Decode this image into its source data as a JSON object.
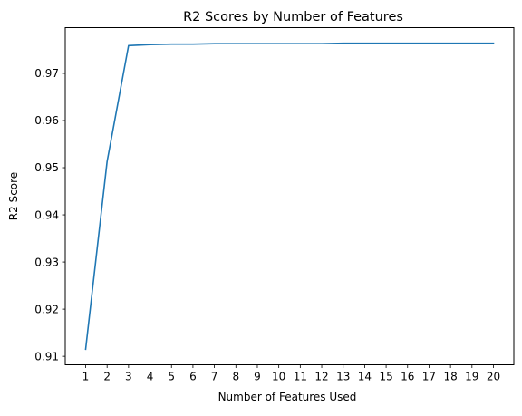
{
  "chart_data": {
    "type": "line",
    "title": "R2 Scores by Number of Features",
    "xlabel": "Number of Features Used",
    "ylabel": "R2 Score",
    "x": [
      1,
      2,
      3,
      4,
      5,
      6,
      7,
      8,
      9,
      10,
      11,
      12,
      13,
      14,
      15,
      16,
      17,
      18,
      19,
      20
    ],
    "x_tick_labels": [
      "1",
      "2",
      "3",
      "4",
      "5",
      "6",
      "7",
      "8",
      "9",
      "10",
      "11",
      "12",
      "13",
      "14",
      "15",
      "16",
      "17",
      "18",
      "19",
      "20"
    ],
    "y_tick_labels": [
      "0.91",
      "0.92",
      "0.93",
      "0.94",
      "0.95",
      "0.96",
      "0.97"
    ],
    "y_ticks": [
      0.91,
      0.92,
      0.93,
      0.94,
      0.95,
      0.96,
      0.97
    ],
    "series": [
      {
        "color": "#1f77b4",
        "values": [
          0.9115,
          0.9513,
          0.9759,
          0.9761,
          0.9762,
          0.9762,
          0.9763,
          0.9763,
          0.9763,
          0.9763,
          0.9763,
          0.9763,
          0.9764,
          0.9764,
          0.9764,
          0.9764,
          0.9764,
          0.9764,
          0.9764,
          0.9764
        ]
      }
    ],
    "xlim": [
      0.05,
      20.95
    ],
    "ylim": [
      0.9082,
      0.9797
    ],
    "grid": false,
    "legend": false
  }
}
